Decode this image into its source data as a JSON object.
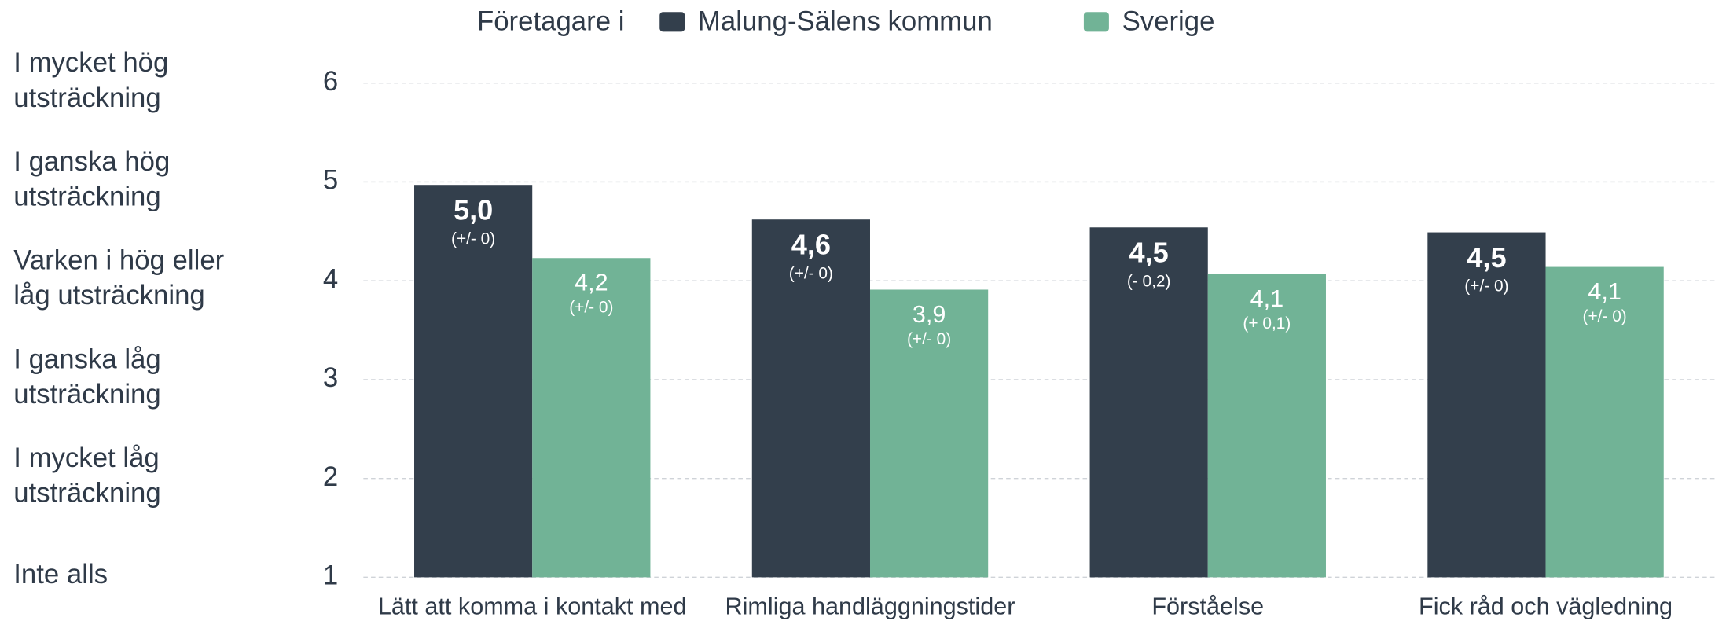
{
  "chart_data": {
    "type": "bar",
    "legend_title": "Företagare i",
    "categories": [
      "Lätt att komma i kontakt med",
      "Rimliga handläggningstider",
      "Förståelse",
      "Fick råd och vägledning"
    ],
    "series": [
      {
        "name": "Malung-Sälens kommun",
        "color": "#333f4c",
        "values": [
          4.97,
          4.62,
          4.54,
          4.49
        ],
        "value_labels": [
          "5,0",
          "4,6",
          "4,5",
          "4,5"
        ],
        "change_labels": [
          "(+/- 0)",
          "(+/- 0)",
          "(- 0,2)",
          "(+/- 0)"
        ]
      },
      {
        "name": "Sverige",
        "color": "#71b396",
        "values": [
          4.23,
          3.91,
          4.07,
          4.14
        ],
        "value_labels": [
          "4,2",
          "3,9",
          "4,1",
          "4,1"
        ],
        "change_labels": [
          "(+/- 0)",
          "(+/- 0)",
          "(+ 0,1)",
          "(+/- 0)"
        ]
      }
    ],
    "ylim": [
      1,
      6
    ],
    "yticks": [
      1,
      2,
      3,
      4,
      5,
      6
    ],
    "grid": true,
    "ytick_descriptions": [
      [
        "Inte alls"
      ],
      [
        "I mycket låg",
        "utsträckning"
      ],
      [
        "I ganska låg",
        "utsträckning"
      ],
      [
        "Varken i hög eller",
        "låg utsträckning"
      ],
      [
        "I ganska hög",
        "utsträckning"
      ],
      [
        "I mycket hög",
        "utsträckning"
      ]
    ]
  }
}
